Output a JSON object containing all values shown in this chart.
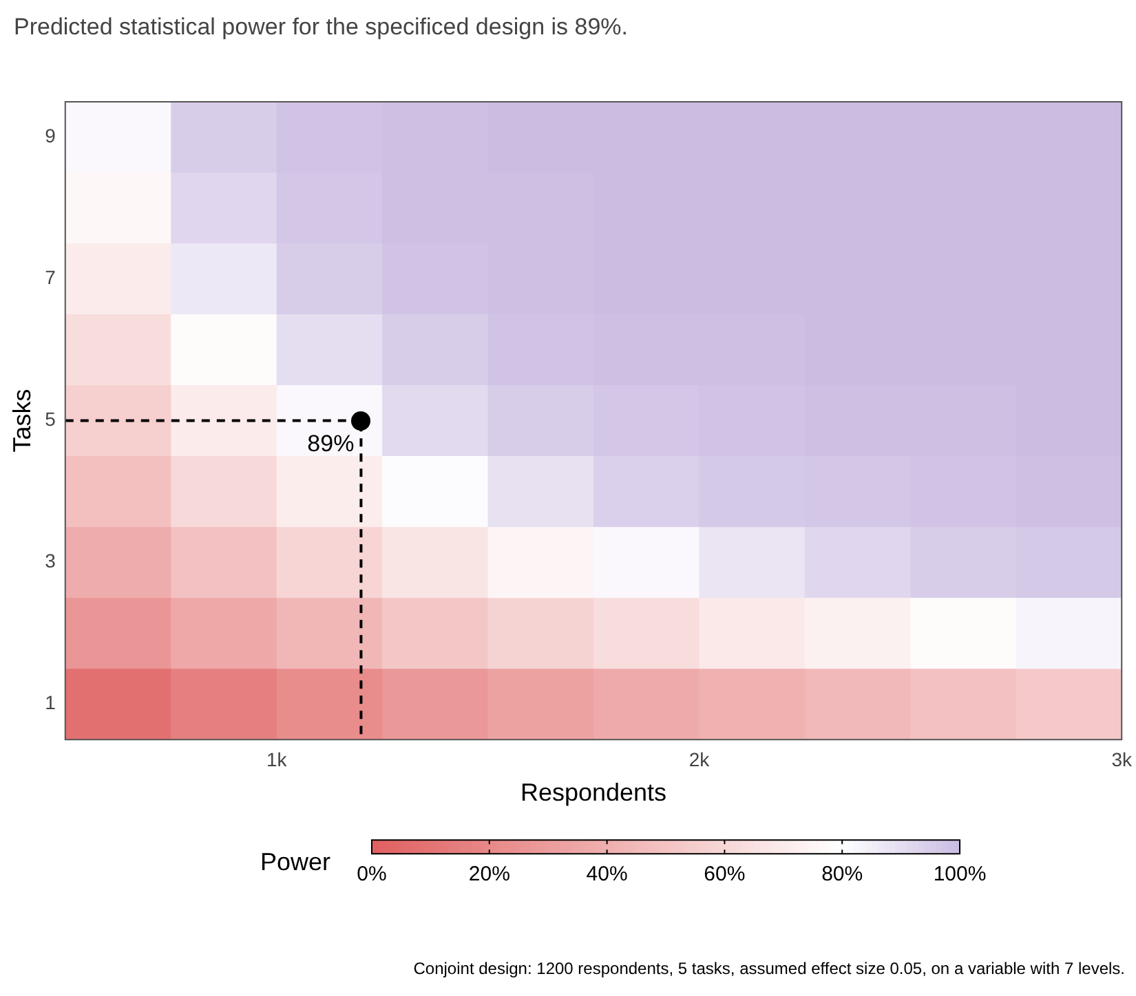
{
  "chart_data": {
    "type": "heatmap",
    "title": "Predicted statistical power for the specificed design is 89%.",
    "xlabel": "Respondents",
    "ylabel": "Tasks",
    "clabel": "Power",
    "x": [
      625,
      875,
      1125,
      1375,
      1625,
      1875,
      2125,
      2375,
      2625,
      2875
    ],
    "y_categories": [
      "9",
      null,
      "7",
      null,
      "5",
      null,
      "3",
      null,
      "1"
    ],
    "cells": [
      [
        82,
        95,
        98,
        99,
        100,
        100,
        100,
        100,
        100,
        100
      ],
      [
        76,
        92,
        97,
        99,
        99,
        100,
        100,
        100,
        100,
        100
      ],
      [
        70,
        87,
        95,
        98,
        99,
        100,
        100,
        100,
        100,
        100
      ],
      [
        63,
        78,
        90,
        95,
        98,
        99,
        99,
        100,
        100,
        100
      ],
      [
        56,
        70,
        82,
        91,
        95,
        97,
        98,
        99,
        99,
        100
      ],
      [
        48,
        61,
        71,
        81,
        89,
        94,
        96,
        97,
        98,
        99
      ],
      [
        38,
        49,
        59,
        67,
        75,
        82,
        88,
        92,
        95,
        96
      ],
      [
        27,
        36,
        44,
        52,
        58,
        63,
        69,
        73,
        78,
        83
      ],
      [
        8,
        16,
        22,
        28,
        33,
        37,
        41,
        45,
        49,
        53
      ]
    ],
    "clim": [
      0,
      100
    ],
    "cticks": [
      {
        "value": 0,
        "label": "0%"
      },
      {
        "value": 20,
        "label": "20%"
      },
      {
        "value": 40,
        "label": "40%"
      },
      {
        "value": 60,
        "label": "60%"
      },
      {
        "value": 80,
        "label": "80%"
      },
      {
        "value": 100,
        "label": "100%"
      }
    ],
    "xlim": [
      500,
      3000
    ],
    "xticks": [
      {
        "value": 1000,
        "label": "1k"
      },
      {
        "value": 2000,
        "label": "2k"
      },
      {
        "value": 3000,
        "label": "3k"
      }
    ],
    "grid": false,
    "ref_lines": [
      {
        "axis": "x",
        "value": 1200,
        "color": "#000000",
        "line_style": "dashed"
      },
      {
        "axis": "y",
        "value": "5",
        "color": "#000000",
        "line_style": "dashed"
      }
    ],
    "annotations": [
      {
        "text": "89%",
        "x": 1200,
        "y": "5"
      },
      "Conjoint design: 1200 respondents, 5 tasks, assumed effect size 0.05, on a variable with 7 levels."
    ]
  }
}
